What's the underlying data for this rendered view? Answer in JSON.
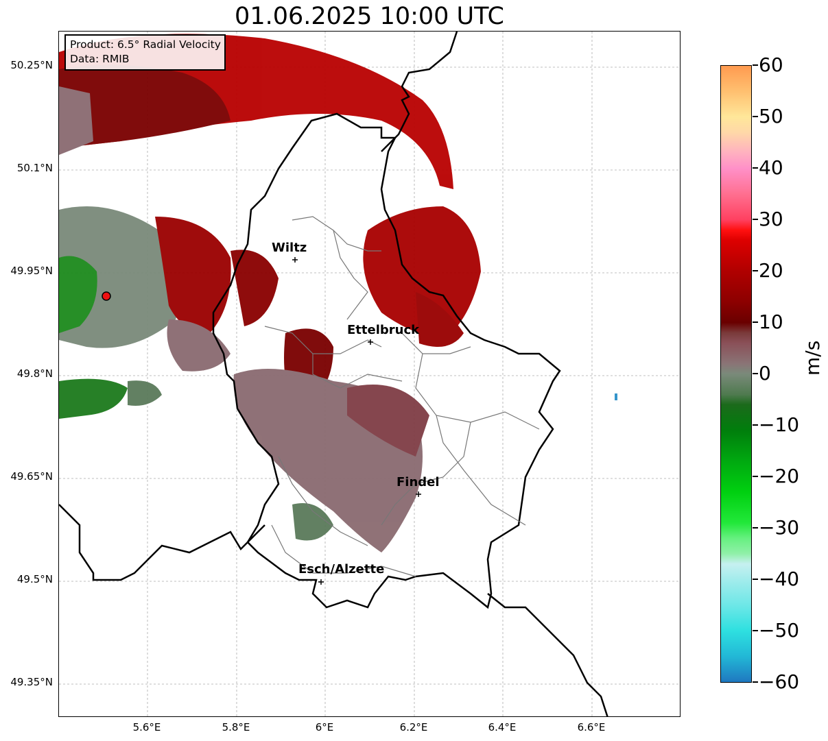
{
  "title": "01.06.2025 10:00 UTC",
  "info_box": {
    "line1": "Product: 6.5° Radial Velocity",
    "line2": "Data: RMIB"
  },
  "lat_ticks": [
    "50.25°N",
    "50.1°N",
    "49.95°N",
    "49.8°N",
    "49.65°N",
    "49.5°N",
    "49.35°N"
  ],
  "lon_ticks": [
    "5.6°E",
    "5.8°E",
    "6°E",
    "6.2°E",
    "6.4°E",
    "6.6°E"
  ],
  "cities": [
    "Wiltz",
    "Ettelbruck",
    "Findel",
    "Esch/Alzette"
  ],
  "colorbar": {
    "unit": "m/s",
    "ticks": [
      "60",
      "50",
      "40",
      "30",
      "20",
      "10",
      "0",
      "−10",
      "−20",
      "−30",
      "−40",
      "−50",
      "−60"
    ],
    "min": -60,
    "max": 60,
    "stops": [
      {
        "v": -60,
        "c": "#1f78c0"
      },
      {
        "v": -55,
        "c": "#22b8d6"
      },
      {
        "v": -50,
        "c": "#2ee0e0"
      },
      {
        "v": -45,
        "c": "#6ee7e7"
      },
      {
        "v": -40,
        "c": "#a3ecec"
      },
      {
        "v": -37,
        "c": "#c6f0f0"
      },
      {
        "v": -35,
        "c": "#90f0a8"
      },
      {
        "v": -32,
        "c": "#66f080"
      },
      {
        "v": -29,
        "c": "#22e83a"
      },
      {
        "v": -23,
        "c": "#00d010"
      },
      {
        "v": -17,
        "c": "#00a910"
      },
      {
        "v": -11,
        "c": "#007e0c"
      },
      {
        "v": -6,
        "c": "#1b6a1b"
      },
      {
        "v": -4,
        "c": "#4f7a4f"
      },
      {
        "v": 0,
        "c": "#7a8a7a"
      },
      {
        "v": 2,
        "c": "#8a7476"
      },
      {
        "v": 6,
        "c": "#8a5058"
      },
      {
        "v": 8,
        "c": "#7a3a3a"
      },
      {
        "v": 10,
        "c": "#6a0000"
      },
      {
        "v": 14,
        "c": "#8c0000"
      },
      {
        "v": 20,
        "c": "#b00000"
      },
      {
        "v": 26,
        "c": "#dd0000"
      },
      {
        "v": 28,
        "c": "#ff1010"
      },
      {
        "v": 30,
        "c": "#ff4060"
      },
      {
        "v": 35,
        "c": "#ff6f90"
      },
      {
        "v": 40,
        "c": "#ff90c8"
      },
      {
        "v": 43,
        "c": "#ffb0c0"
      },
      {
        "v": 47,
        "c": "#ffd8a8"
      },
      {
        "v": 50,
        "c": "#ffe79a"
      },
      {
        "v": 55,
        "c": "#ffc070"
      },
      {
        "v": 60,
        "c": "#ff9a50"
      }
    ]
  }
}
